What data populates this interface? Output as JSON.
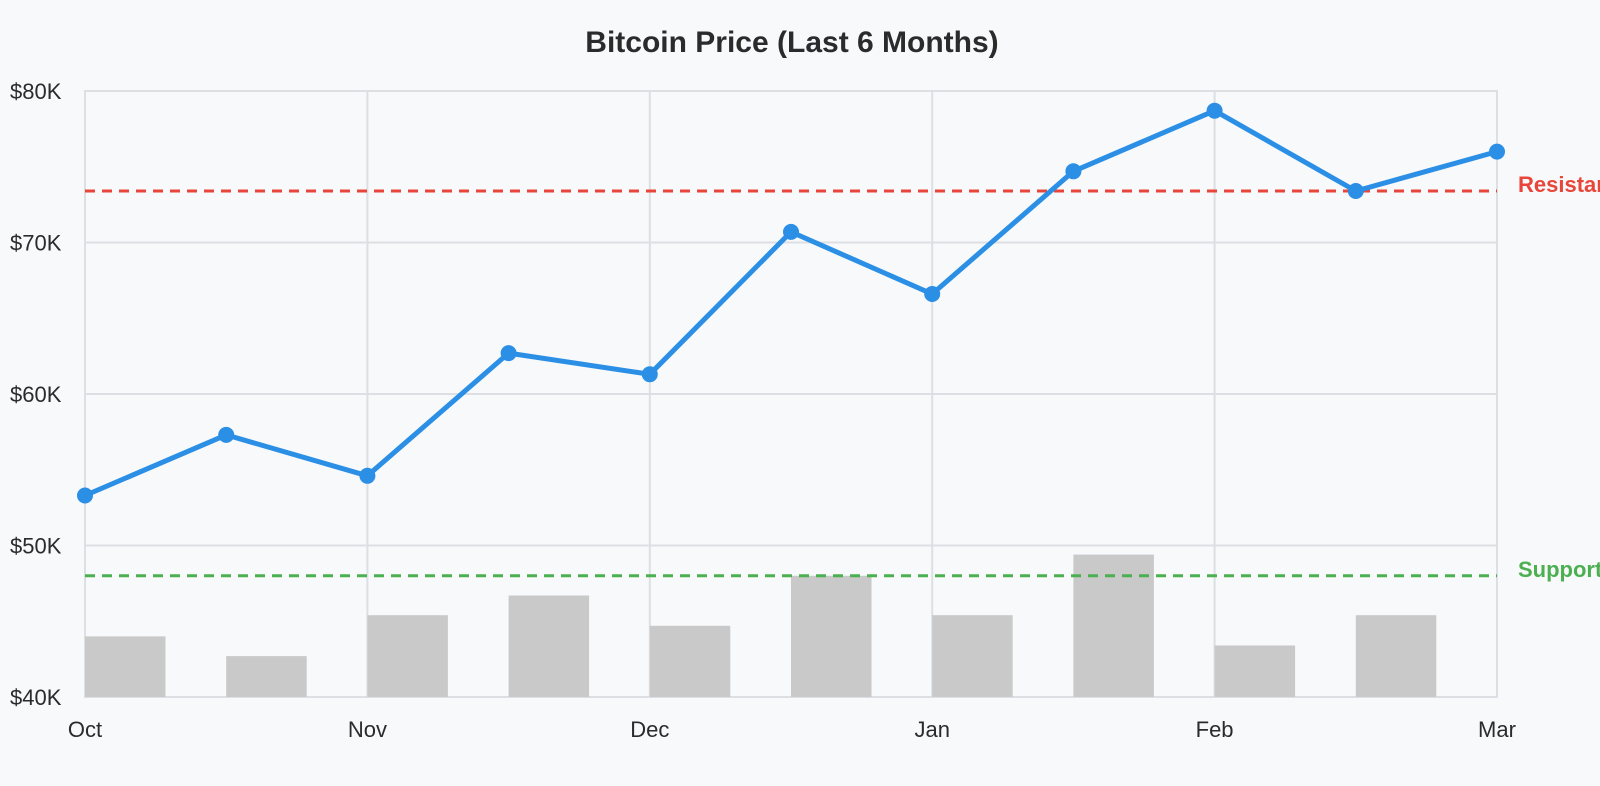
{
  "chart_data": {
    "type": "line",
    "title": "Bitcoin Price (Last 6 Months)",
    "xlabel": "",
    "ylabel": "",
    "x_ticks": [
      "Oct",
      "Nov",
      "Dec",
      "Jan",
      "Feb",
      "Mar"
    ],
    "y_ticks": [
      "$40K",
      "$50K",
      "$60K",
      "$70K",
      "$80K"
    ],
    "ylim": [
      40000,
      80000
    ],
    "grid": true,
    "series": [
      {
        "values": [
          53300,
          57300,
          54600,
          62700,
          61300,
          70700,
          66600,
          74700,
          78700,
          73400,
          76000
        ],
        "color": "#2b8fe6"
      }
    ],
    "volume_bars": {
      "values": [
        44000,
        42700,
        45400,
        46700,
        44700,
        48000,
        45400,
        49400,
        43400,
        45400
      ],
      "color": "#c9c9c9"
    },
    "reference_lines": [
      {
        "label": "Resistance",
        "value": 73400,
        "color": "#e8463a"
      },
      {
        "label": "Support",
        "value": 48000,
        "color": "#4caf50"
      }
    ]
  }
}
